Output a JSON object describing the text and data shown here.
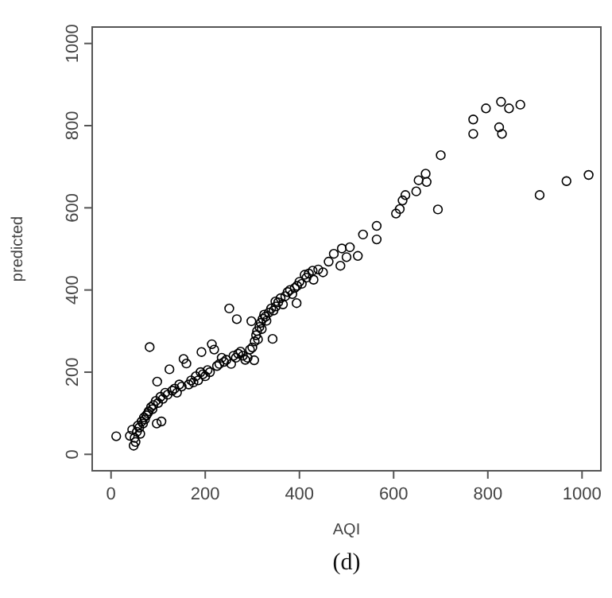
{
  "chart_data": {
    "type": "scatter",
    "xlabel": "AQI",
    "ylabel": "predicted",
    "annotations": [
      "(d)"
    ],
    "xlim": [
      -40,
      1040
    ],
    "ylim": [
      -40,
      1040
    ],
    "xticks": [
      0,
      200,
      400,
      600,
      800,
      1000
    ],
    "yticks": [
      0,
      200,
      400,
      600,
      800,
      1000
    ],
    "grid": false,
    "marker": "circle",
    "series": [
      {
        "color": "#000000",
        "x": [
          11,
          40,
          45,
          48,
          50,
          52,
          55,
          57,
          60,
          62,
          65,
          68,
          70,
          72,
          75,
          78,
          80,
          82,
          85,
          88,
          90,
          95,
          97,
          98,
          100,
          105,
          107,
          110,
          115,
          120,
          124,
          130,
          135,
          140,
          145,
          150,
          154,
          160,
          165,
          170,
          175,
          180,
          185,
          190,
          192,
          195,
          200,
          205,
          210,
          214,
          219,
          225,
          230,
          235,
          240,
          245,
          251,
          255,
          260,
          265,
          267,
          270,
          275,
          280,
          285,
          290,
          295,
          298,
          300,
          304,
          305,
          308,
          310,
          312,
          315,
          318,
          320,
          322,
          325,
          328,
          330,
          335,
          340,
          343,
          345,
          349,
          350,
          355,
          360,
          365,
          370,
          375,
          380,
          385,
          390,
          394,
          395,
          400,
          405,
          411,
          415,
          420,
          428,
          430,
          440,
          450,
          462,
          473,
          487,
          490,
          500,
          507,
          524,
          535,
          564,
          564,
          605,
          613,
          619,
          625,
          648,
          653,
          668,
          670,
          694,
          700,
          769,
          769,
          796,
          824,
          828,
          830,
          845,
          869,
          910,
          967,
          1014
        ],
        "values": [
          44,
          45,
          60,
          21,
          40,
          30,
          55,
          70,
          65,
          50,
          80,
          75,
          90,
          85,
          95,
          100,
          105,
          261,
          115,
          110,
          120,
          130,
          75,
          177,
          125,
          140,
          80,
          135,
          150,
          145,
          207,
          155,
          160,
          150,
          170,
          165,
          232,
          221,
          170,
          180,
          175,
          190,
          180,
          200,
          249,
          195,
          190,
          205,
          200,
          268,
          255,
          215,
          220,
          235,
          225,
          230,
          355,
          220,
          240,
          235,
          329,
          245,
          250,
          240,
          230,
          235,
          255,
          324,
          260,
          229,
          275,
          290,
          300,
          280,
          310,
          320,
          305,
          330,
          340,
          335,
          325,
          345,
          355,
          281,
          350,
          372,
          360,
          370,
          380,
          365,
          385,
          395,
          400,
          390,
          405,
          368,
          410,
          420,
          415,
          437,
          430,
          440,
          447,
          425,
          450,
          443,
          469,
          488,
          459,
          501,
          480,
          504,
          483,
          535,
          556,
          523,
          586,
          597,
          618,
          631,
          640,
          667,
          683,
          663,
          596,
          728,
          815,
          780,
          842,
          796,
          858,
          780,
          842,
          851,
          631,
          665,
          680
        ]
      }
    ]
  }
}
